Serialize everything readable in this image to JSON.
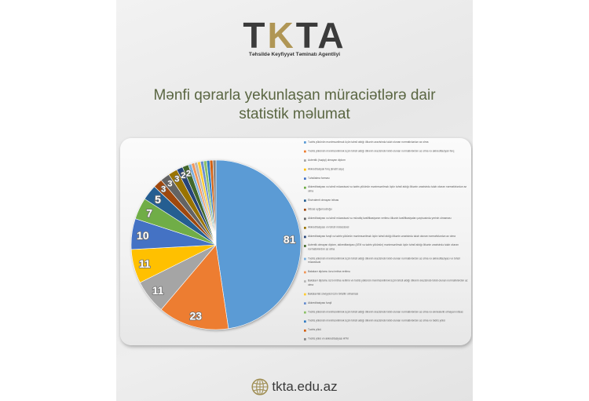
{
  "logo": {
    "letters": [
      "T",
      "K",
      "T",
      "A"
    ],
    "tagline": "Təhsildə Keyfiyyət Təminatı Agentliyi"
  },
  "header": {
    "title_line1": "Mənfi qərarla yekunlaşan müraciətlərə dair",
    "title_line2": "statistik məlumat"
  },
  "footer": {
    "icon": "globe-icon",
    "website": "tkta.edu.az"
  },
  "colors": {
    "brand_dark": "#3b3b3b",
    "brand_gold": "#b09655",
    "title": "#5a6642",
    "background": "#ebebeb"
  },
  "chart_data": {
    "type": "pie",
    "legend_position": "right",
    "slices": [
      {
        "label": "Tədris yükünün mənimsənilmək üçün təhsil aldığı ölkənin ərazisində tələb olunan normativlərdən az olma",
        "value": 81,
        "color": "#5B9BD5"
      },
      {
        "label": "Tədris yükünün mənimsənilmək üçün təhsil aldığı ölkənin ərazisində tələb olunan normativlərdən az olma və akkreditasiyalı fərq",
        "value": 23,
        "color": "#ED7D31"
      },
      {
        "label": "Autentik (həqiqi) olmayan diplom",
        "value": 11,
        "color": "#A5A5A5"
      },
      {
        "label": "Akkreditasiyalı fərq (kredit sayı)",
        "value": 11,
        "color": "#FFC000"
      },
      {
        "label": "Təhsilalma forması",
        "value": 10,
        "color": "#4472C4"
      },
      {
        "label": "Akkreditasiyası və təhsil müəssisəsi və tədris yükünün mənimsənilmək üçün təhsil aldığı ölkənin ərazisində tələb olunan normativlərdən az olma",
        "value": 7,
        "color": "#70AD47"
      },
      {
        "label": "Ekvivalenti olmayan ixtisas",
        "value": 5,
        "color": "#255E91"
      },
      {
        "label": "İxtisas uyğunsuzluğu",
        "value": 3,
        "color": "#9E480E"
      },
      {
        "label": "Akkreditasiyası və təhsil müəssisəsi və müvafiq kvalifikasiyanın verilmə ölkənin kvalifikasiyalar çərçivəsində yerinin olmaması",
        "value": 3,
        "color": "#636363"
      },
      {
        "label": "Akkreditasiyası və təhsil müəssisəsi",
        "value": 3,
        "color": "#997300"
      },
      {
        "label": "Akkreditasiyası fərqli və tədris yükünün mənimsənilmək üçün təhsil aldığı ölkənin ərazisində tələb olunan normativlərdən az olma",
        "value": 2,
        "color": "#264478"
      },
      {
        "label": "Autentik olmayan diplom, akkreditasiyası (ATM və tədris yükünün) mənimsənilmək üçün təhsil aldığı ölkənin ərazisində tələb olunan normativlərdən az olma",
        "value": 2,
        "color": "#43682B"
      },
      {
        "label": "Tədris yükünün mənimsənilmək üçün təhsil aldığı ölkənin ərazisində tələb olunan normativlərdən az olma və akkreditasiyası və təhsil müəssisəsi",
        "value": 1,
        "color": "#7CAFDD"
      },
      {
        "label": "Bakalavr diplomu üzrə imtina verilmə",
        "value": 1,
        "color": "#F1975A"
      },
      {
        "label": "Bakalavr diplomu üzrə imtina verilmə və tədris yükünün mənimsənilmək üçün təhsil aldığı ölkənin ərazisində tələb olunan normativlərdən az olma",
        "value": 1,
        "color": "#B7B7B7"
      },
      {
        "label": "Bakalavriat səviyyəsi üzrə təhsilin olmaması",
        "value": 1,
        "color": "#FFCD33"
      },
      {
        "label": "Akkreditasiyası fərqli",
        "value": 1,
        "color": "#698ED0"
      },
      {
        "label": "Tədris yükünün mənimsənilmək üçün təhsil aldığı ölkənin ərazisində tələb olunan normativlərdən az olma və ekvivalenti olmayan ixtisas",
        "value": 1,
        "color": "#8CC168"
      },
      {
        "label": "Tədris yükünün mənimsənilmək üçün təhsil aldığı ölkənin ərazisində tələb olunan normativlərdən az olma və tədris yükü",
        "value": 1,
        "color": "#327DC2"
      },
      {
        "label": "Tədris yükü",
        "value": 1,
        "color": "#D26012"
      },
      {
        "label": "Tədris yükü və akkreditasiyası ATM",
        "value": 1,
        "color": "#848484"
      }
    ]
  }
}
